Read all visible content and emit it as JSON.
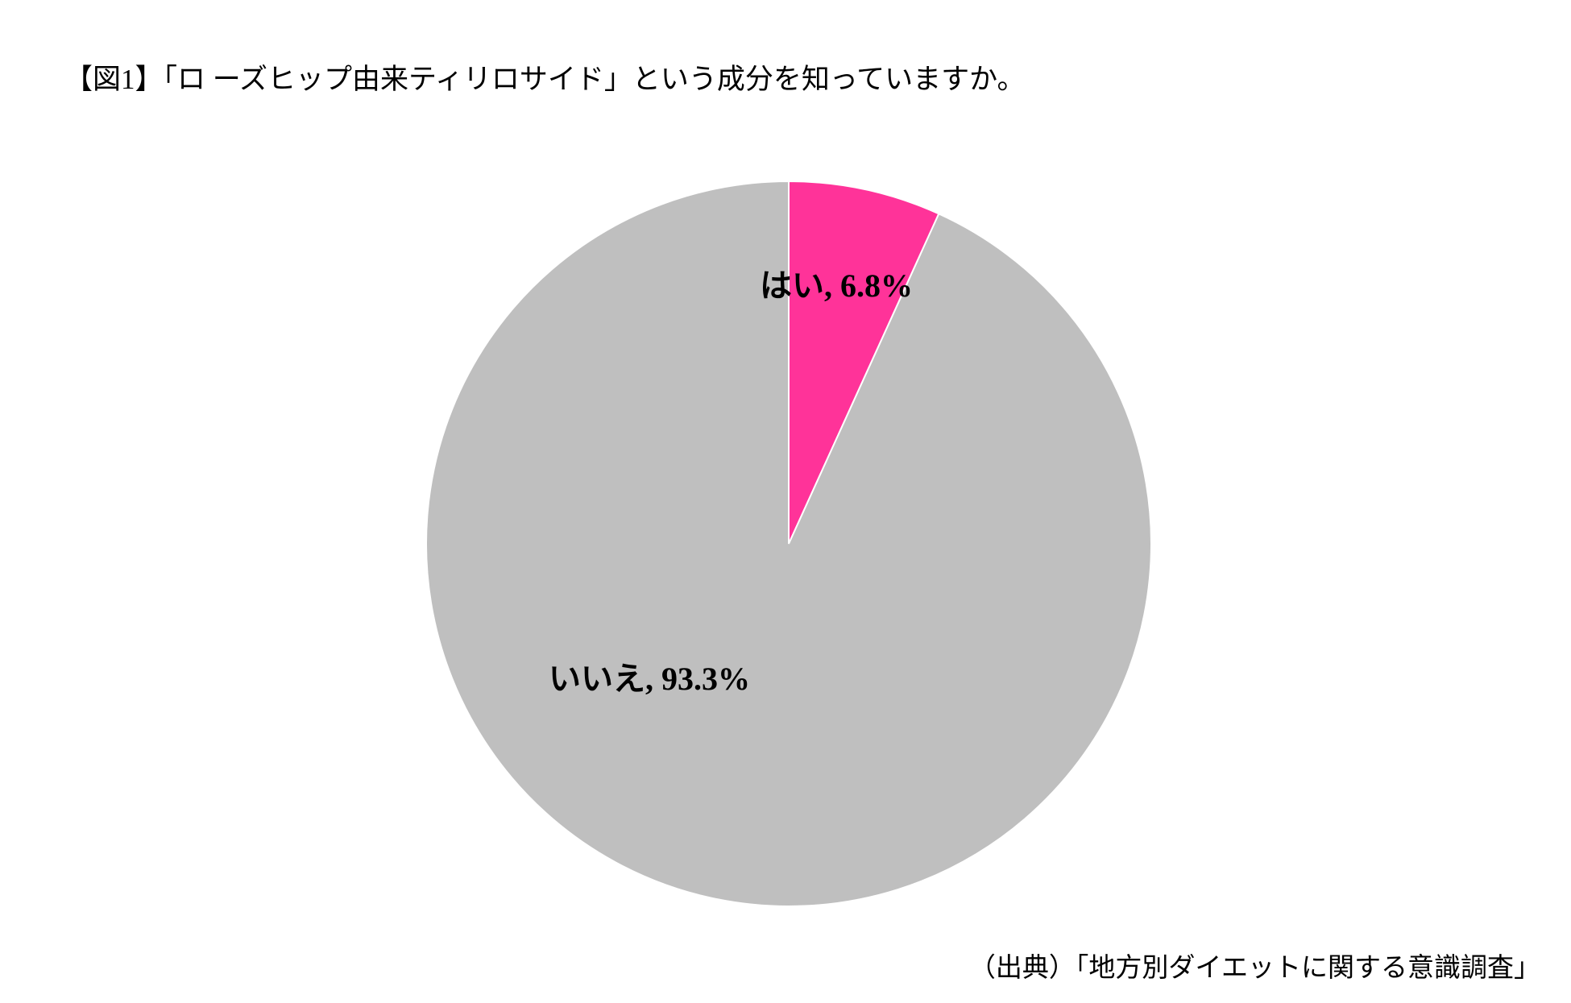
{
  "chart_data": {
    "type": "pie",
    "title": "【図1】「ロ ーズヒップ由来ティリロサイド」という成分を知っていますか。",
    "values": [
      6.8,
      93.3
    ],
    "value_labels": [
      "はい, 6.8%",
      "いいえ, 93.3%"
    ],
    "colors": [
      "#ff3399",
      "#bfbfbf"
    ],
    "source": "（出典）「地方別ダイエットに関する意識調査」"
  }
}
